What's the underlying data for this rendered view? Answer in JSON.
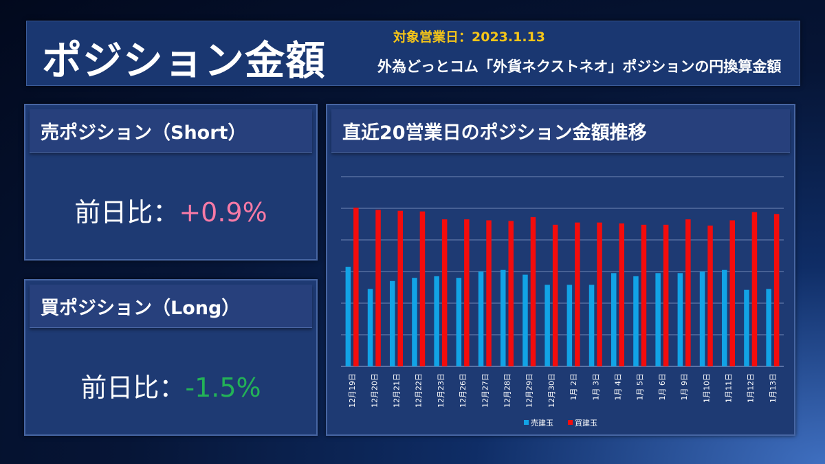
{
  "header": {
    "title": "ポジション金額",
    "date_line": "対象営業日：2023.1.13",
    "subtitle": "外為どっとコム「外貨ネクストネオ」ポジションの円換算金額"
  },
  "short_card": {
    "title": "売ポジション（Short）",
    "ratio_label": "前日比：",
    "ratio_value": "+0.9%"
  },
  "long_card": {
    "title": "買ポジション（Long）",
    "ratio_label": "前日比：",
    "ratio_value": "-1.5%"
  },
  "colors": {
    "short_series": "#12a3e6",
    "long_series": "#f40c0c",
    "positive": "#f77aa6",
    "negative": "#23b257"
  },
  "chart_data": {
    "type": "bar",
    "title": "直近20営業日のポジション金額推移",
    "categories": [
      "12月19日",
      "12月20日",
      "12月21日",
      "12月22日",
      "12月23日",
      "12月26日",
      "12月27日",
      "12月28日",
      "12月29日",
      "12月30日",
      "1月 2日",
      "1月 3日",
      "1月 4日",
      "1月 5日",
      "1月 6日",
      "1月 9日",
      "1月10日",
      "1月11日",
      "1月12日",
      "1月13日"
    ],
    "series": [
      {
        "name": "売建玉",
        "values": [
          3.15,
          2.45,
          2.7,
          2.8,
          2.85,
          2.8,
          3.0,
          3.05,
          2.9,
          2.58,
          2.58,
          2.58,
          2.95,
          2.85,
          2.95,
          2.95,
          3.0,
          3.05,
          2.42,
          2.45
        ]
      },
      {
        "name": "買建玉",
        "values": [
          5.02,
          4.95,
          4.92,
          4.9,
          4.65,
          4.65,
          4.62,
          4.6,
          4.72,
          4.48,
          4.55,
          4.55,
          4.52,
          4.48,
          4.48,
          4.65,
          4.45,
          4.62,
          4.88,
          4.82
        ]
      }
    ],
    "ylim": [
      0,
      6
    ],
    "grid": true,
    "legend": "bottom"
  }
}
